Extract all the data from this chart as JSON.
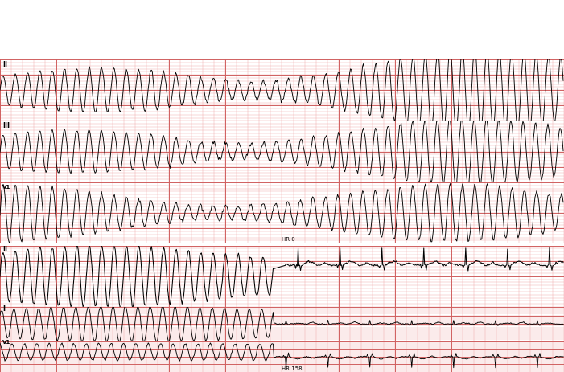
{
  "background_color": "#ffffff",
  "grid_minor_color": "#f0a0a0",
  "grid_major_color": "#d06060",
  "line_color": "#000000",
  "fig_width": 7.01,
  "fig_height": 4.63,
  "dpi": 100,
  "panel1_labels": [
    "II",
    "III",
    "V1"
  ],
  "panel2_labels": [
    "II",
    "I",
    "V1"
  ],
  "hr_label1": "HR 0",
  "hr_label2": "HR 158",
  "label_fontsize": 6,
  "hr_fontsize": 5,
  "N": 700,
  "vt_freq_hz": 6.5,
  "sinus_period_samples": 52,
  "vt_split": 340
}
